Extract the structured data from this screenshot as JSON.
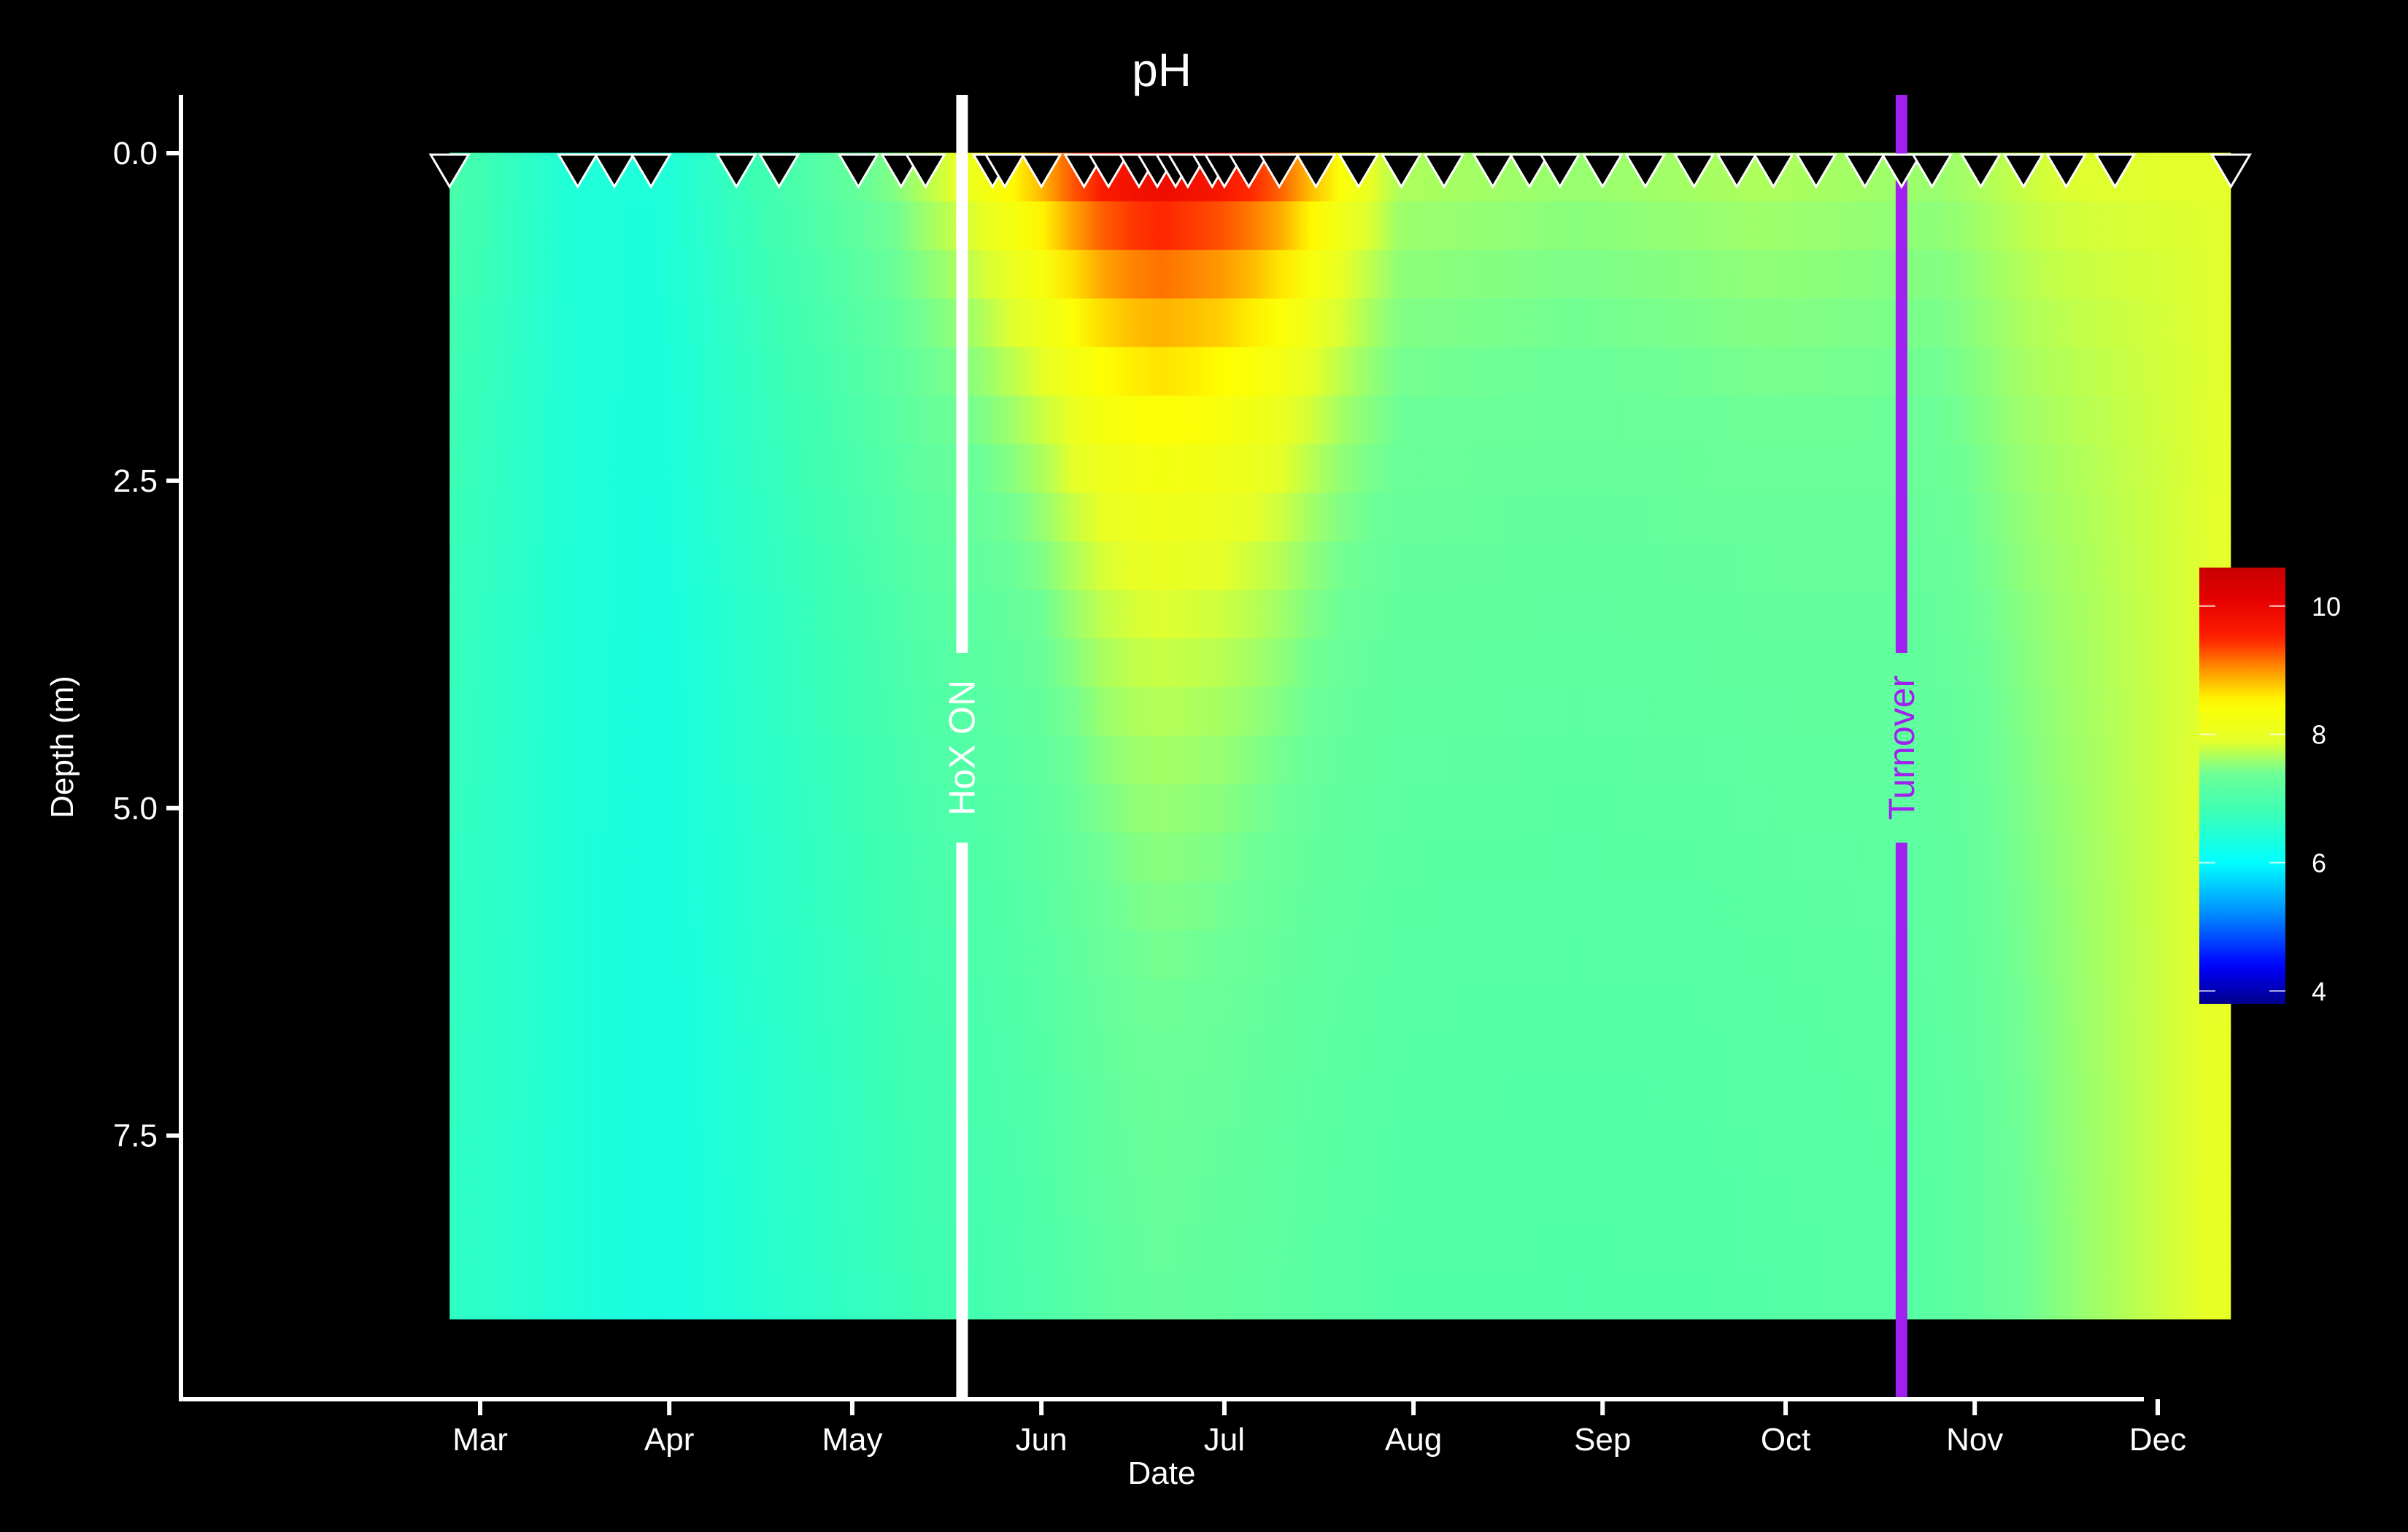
{
  "chart_data": {
    "type": "heatmap",
    "title": "pH",
    "xlabel": "Date",
    "ylabel": "Depth (m)",
    "x_ticks": [
      "Mar",
      "Apr",
      "May",
      "Jun",
      "Jul",
      "Aug",
      "Sep",
      "Oct",
      "Nov",
      "Dec"
    ],
    "y_ticks": [
      "0.0",
      "2.5",
      "5.0",
      "7.5"
    ],
    "y_range": [
      0,
      9
    ],
    "y_reversed": true,
    "x_domain_days": [
      0,
      306
    ],
    "x_tick_days": [
      0,
      31,
      61,
      92,
      122,
      153,
      184,
      214,
      245,
      275
    ],
    "data_x_range_days": [
      -5,
      287
    ],
    "colorbar": {
      "ticks": [
        "4",
        "6",
        "8",
        "10"
      ],
      "range": [
        3.8,
        10.6
      ]
    },
    "sample_dates_days": [
      -5,
      16,
      22,
      28,
      42,
      49,
      62,
      69,
      73,
      84,
      86,
      92,
      99,
      103,
      108,
      111,
      114,
      116,
      120,
      122,
      126,
      131,
      137,
      144,
      151,
      158,
      166,
      172,
      177,
      184,
      191,
      199,
      206,
      212,
      219,
      227,
      233,
      238,
      246,
      253,
      260,
      268,
      287
    ],
    "annotations": [
      {
        "label": "HoX ON",
        "day": 79,
        "color": "#ffffff"
      },
      {
        "label": "Turnover",
        "day": 233,
        "color": "#a020f0"
      }
    ],
    "surface_series": [
      {
        "day": -5,
        "ph": 7.0
      },
      {
        "day": 15,
        "ph": 6.4
      },
      {
        "day": 30,
        "ph": 6.4
      },
      {
        "day": 55,
        "ph": 7.1
      },
      {
        "day": 70,
        "ph": 7.6
      },
      {
        "day": 78,
        "ph": 8.0
      },
      {
        "day": 82,
        "ph": 8.3
      },
      {
        "day": 92,
        "ph": 9.0
      },
      {
        "day": 100,
        "ph": 9.7
      },
      {
        "day": 110,
        "ph": 10.1
      },
      {
        "day": 120,
        "ph": 9.9
      },
      {
        "day": 130,
        "ph": 9.5
      },
      {
        "day": 137,
        "ph": 8.9
      },
      {
        "day": 150,
        "ph": 7.7
      },
      {
        "day": 180,
        "ph": 7.6
      },
      {
        "day": 210,
        "ph": 7.7
      },
      {
        "day": 240,
        "ph": 7.6
      },
      {
        "day": 260,
        "ph": 7.9
      },
      {
        "day": 280,
        "ph": 7.9
      },
      {
        "day": 287,
        "ph": 7.9
      }
    ],
    "bottom_series": [
      {
        "day": -5,
        "ph": 6.6
      },
      {
        "day": 30,
        "ph": 6.3
      },
      {
        "day": 60,
        "ph": 6.6
      },
      {
        "day": 90,
        "ph": 6.9
      },
      {
        "day": 110,
        "ph": 7.2
      },
      {
        "day": 150,
        "ph": 7.0
      },
      {
        "day": 200,
        "ph": 7.0
      },
      {
        "day": 240,
        "ph": 7.1
      },
      {
        "day": 260,
        "ph": 7.5
      },
      {
        "day": 287,
        "ph": 8.0
      }
    ]
  }
}
